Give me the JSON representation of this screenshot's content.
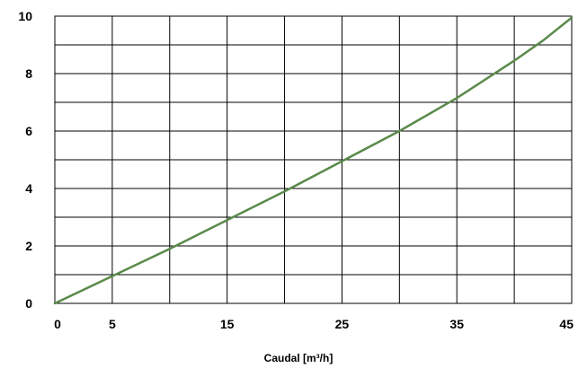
{
  "chart_data": {
    "type": "line",
    "title": "",
    "xlabel": "Caudal [m³/h]",
    "ylabel": "",
    "xlim": [
      0,
      45
    ],
    "ylim": [
      0,
      10
    ],
    "x_ticks": [
      0,
      5,
      15,
      25,
      35,
      45
    ],
    "y_ticks": [
      0,
      2,
      4,
      6,
      8,
      10
    ],
    "x_grid": [
      0,
      5,
      10,
      15,
      20,
      25,
      30,
      35,
      40,
      45
    ],
    "y_grid": [
      0,
      1,
      2,
      3,
      4,
      5,
      6,
      7,
      8,
      9,
      10
    ],
    "grid": true,
    "legend": "none",
    "series": [
      {
        "color": "#5a8a4a",
        "x": [
          0,
          5,
          10,
          15,
          20,
          25,
          30,
          35,
          40,
          42.5,
          45
        ],
        "y": [
          0,
          0.95,
          1.9,
          2.9,
          3.9,
          4.95,
          6.0,
          7.15,
          8.45,
          9.15,
          9.95
        ]
      }
    ]
  }
}
